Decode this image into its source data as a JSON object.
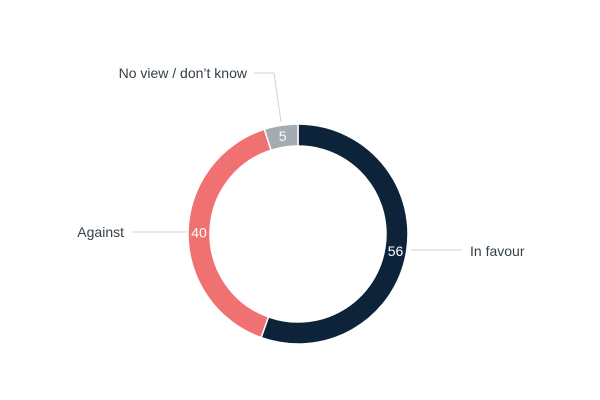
{
  "chart_data": {
    "type": "pie",
    "variant": "donut",
    "title": "",
    "slices": [
      {
        "label": "In favour",
        "value": 56,
        "color": "#0d233a"
      },
      {
        "label": "Against",
        "value": 40,
        "color": "#f07171"
      },
      {
        "label": "No view / don’t know",
        "value": 5,
        "color": "#a5acb1"
      }
    ],
    "start_angle": "12 o'clock",
    "direction": "clockwise",
    "legend": "none",
    "data_labels": "inside-slice"
  }
}
